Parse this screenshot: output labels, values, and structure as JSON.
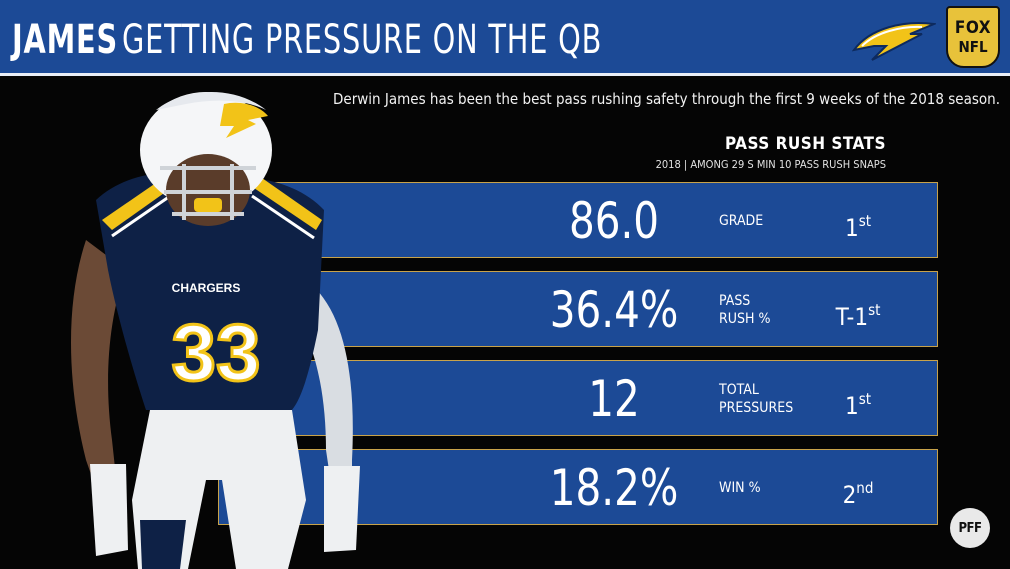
{
  "header": {
    "title_name": "JAMES",
    "title_rest": "GETTING PRESSURE ON THE QB",
    "team_logo_icon": "chargers-bolt-icon",
    "network_badge": {
      "line1": "FOX",
      "line2": "NFL"
    }
  },
  "caption": "Derwin James has been the best pass rushing safety through the first 9 weeks of the 2018 season.",
  "stats": {
    "title": "PASS RUSH STATS",
    "subtitle": "2018 | AMONG 29 S MIN 10 PASS RUSH SNAPS",
    "rows": [
      {
        "value": "86.0",
        "label_line1": "GRADE",
        "label_line2": "",
        "rank": "1",
        "rank_suffix": "st"
      },
      {
        "value": "36.4%",
        "label_line1": "PASS",
        "label_line2": "RUSH %",
        "rank": "T-1",
        "rank_suffix": "st"
      },
      {
        "value": "12",
        "label_line1": "TOTAL",
        "label_line2": "PRESSURES",
        "rank": "1",
        "rank_suffix": "st"
      },
      {
        "value": "18.2%",
        "label_line1": "WIN %",
        "label_line2": "",
        "rank": "2",
        "rank_suffix": "nd"
      }
    ]
  },
  "player_jersey_number": "33",
  "player_jersey_team": "CHARGERS",
  "watermark": "PFF",
  "colors": {
    "header_blue": "#1c4a96",
    "row_blue": "#1c4a96",
    "row_border_gold": "#c8a34a",
    "badge_gold": "#e8c23a",
    "bolt_yellow": "#f2c318"
  }
}
